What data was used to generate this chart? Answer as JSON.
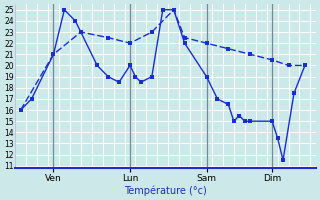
{
  "xlabel": "Température (°c)",
  "ylim": [
    10.8,
    25.5
  ],
  "yticks": [
    11,
    12,
    13,
    14,
    15,
    16,
    17,
    18,
    19,
    20,
    21,
    22,
    23,
    24,
    25
  ],
  "background_color": "#cce8e8",
  "line_color": "#1a2ecc",
  "vlines_x": [
    3,
    10,
    17,
    23
  ],
  "vlines_labels": [
    "Ven",
    "Lun",
    "Sam",
    "Dim"
  ],
  "xlim": [
    -0.5,
    27
  ],
  "series1_x": [
    0,
    1,
    3,
    4,
    5,
    7,
    8,
    9,
    10,
    10.5,
    11,
    12,
    13,
    14,
    15,
    17,
    18,
    19,
    19.5,
    20,
    20.5,
    21,
    23,
    23.5,
    24,
    25,
    26
  ],
  "series1_y": [
    16,
    17,
    21,
    25,
    24,
    20,
    19,
    18.5,
    20,
    19,
    18.5,
    19,
    25,
    25,
    22,
    19,
    17,
    16.5,
    15,
    15.5,
    15,
    15,
    15,
    13.5,
    11.5,
    17.5,
    20
  ],
  "series2_x": [
    0,
    3,
    5.5,
    8,
    10,
    12,
    14,
    15,
    17,
    19,
    21,
    23,
    24.5,
    26
  ],
  "series2_y": [
    16,
    21,
    23,
    22.5,
    22,
    23,
    25,
    22.5,
    22,
    21.5,
    21,
    20.5,
    20,
    20
  ]
}
